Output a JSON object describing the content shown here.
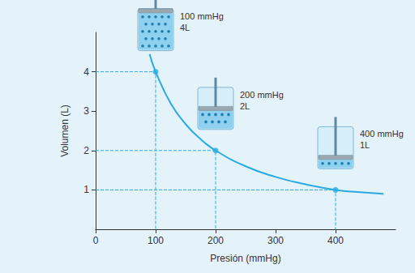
{
  "chart_data": {
    "type": "line",
    "x_label": "Presión (mmHg)",
    "y_label": "Volumen (L)",
    "xlim": [
      0,
      500
    ],
    "xticks": [
      0,
      100,
      200,
      300,
      400
    ],
    "ylim": [
      0,
      5
    ],
    "yticks": [
      1,
      2,
      3,
      4
    ],
    "grid": false,
    "x": [
      90,
      100,
      125,
      150,
      175,
      200,
      250,
      300,
      350,
      400,
      450,
      480
    ],
    "values": [
      4.45,
      4,
      3.2,
      2.67,
      2.29,
      2,
      1.6,
      1.33,
      1.14,
      1,
      0.93,
      0.9
    ],
    "color": "#29abe2",
    "marker": "none",
    "line_style": "solid",
    "points": {
      "x": [
        100,
        200,
        400
      ],
      "values": [
        4,
        2,
        1
      ],
      "marker": "circle",
      "line_style": "dashed"
    },
    "annotations": [
      {
        "x": 100,
        "y": 4,
        "text": [
          "100 mmHg",
          "4L"
        ]
      },
      {
        "x": 200,
        "y": 2,
        "text": [
          "200 mmHg",
          "2L"
        ]
      },
      {
        "x": 400,
        "y": 1,
        "text": [
          "400 mmHg",
          "1L"
        ]
      }
    ]
  }
}
